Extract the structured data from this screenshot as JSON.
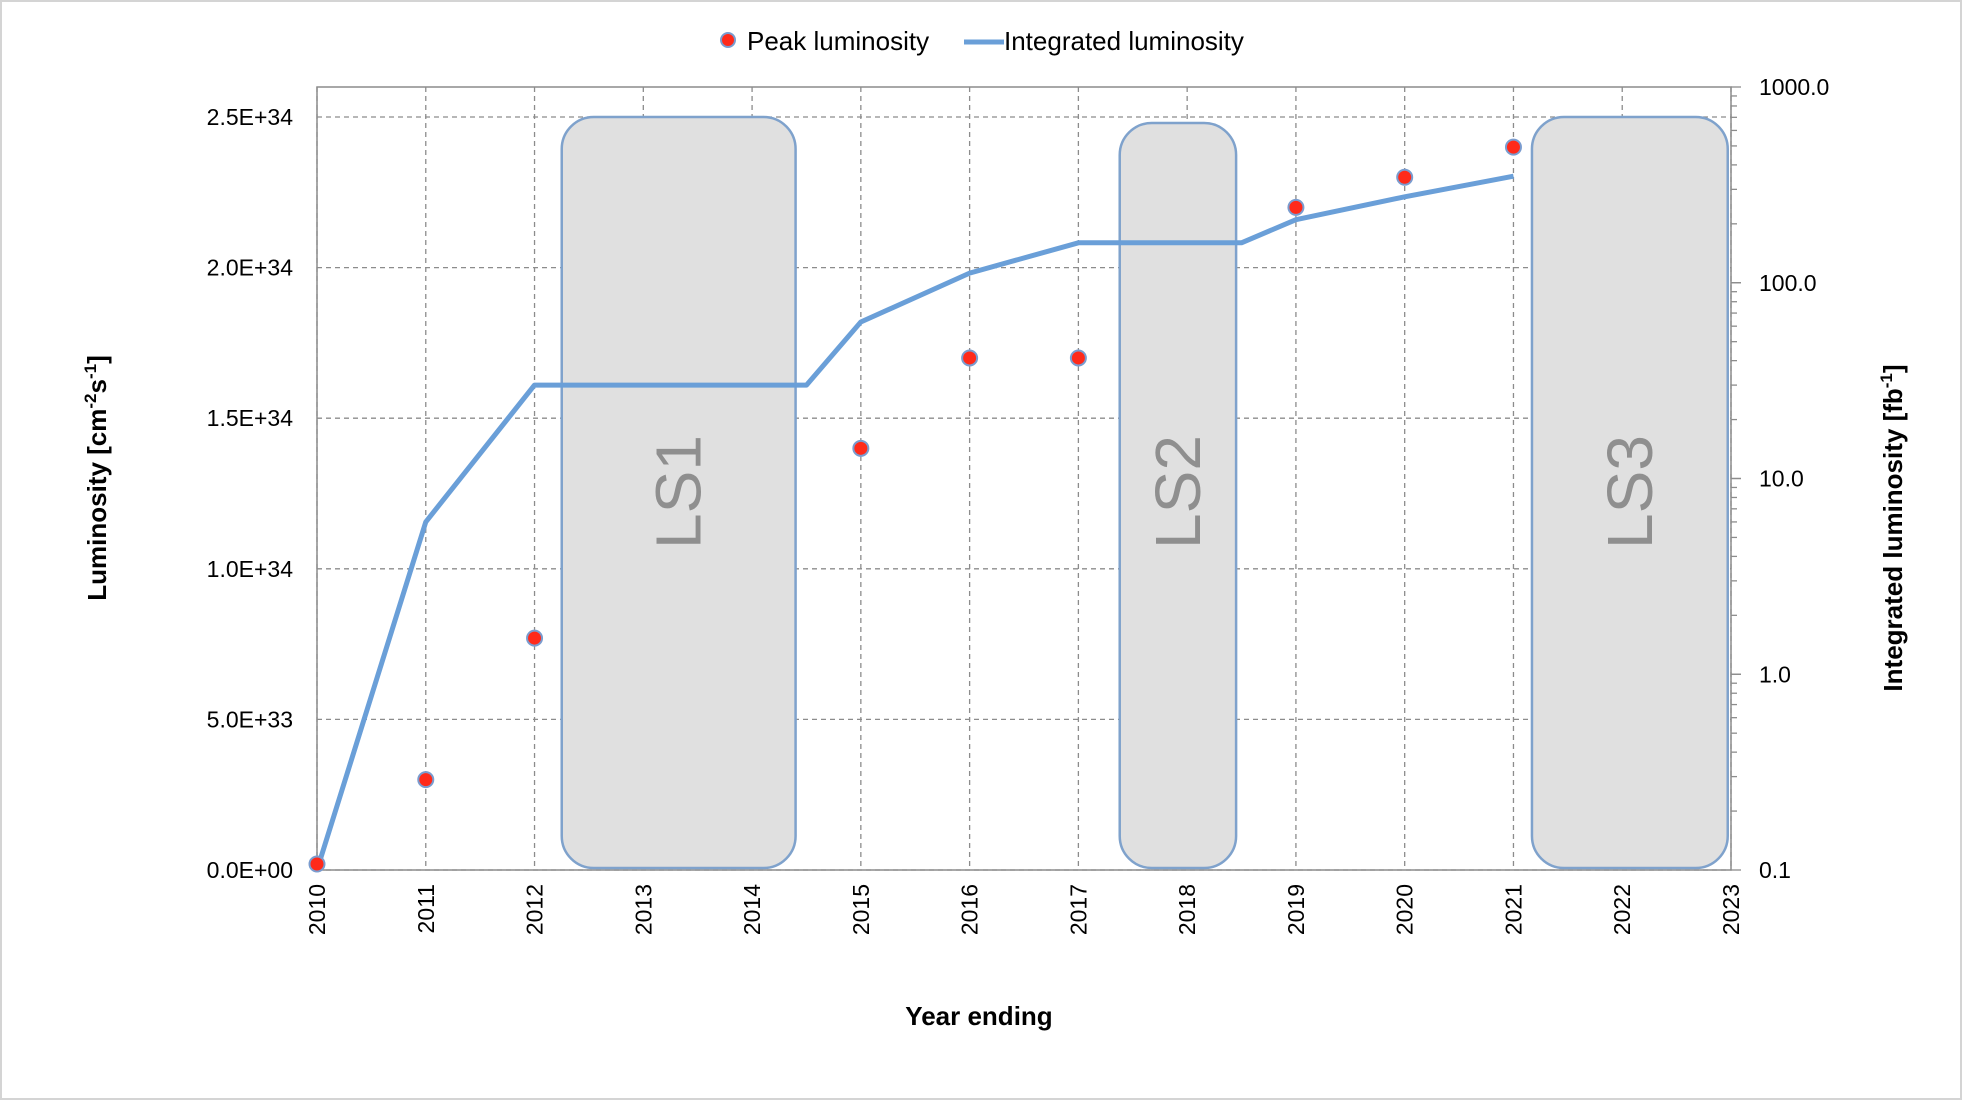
{
  "chart_data": {
    "type": "line",
    "title": "",
    "xlabel": "Year ending",
    "ylabel_left": "Luminosity [cm^-2 s^-1]",
    "ylabel_left_parts": {
      "base": "Luminosity [cm",
      "sup1": "-2",
      "mid": "s",
      "sup2": "-1",
      "end": "]"
    },
    "ylabel_right": "Integrated luminosity [fb^-1]",
    "ylabel_right_parts": {
      "base": "Integrated luminosity [fb",
      "sup": "-1",
      "end": "]"
    },
    "xlim": [
      2010,
      2023
    ],
    "x_ticks": [
      "2010",
      "2011",
      "2012",
      "2013",
      "2014",
      "2015",
      "2016",
      "2017",
      "2018",
      "2019",
      "2020",
      "2021",
      "2022",
      "2023"
    ],
    "ylim_left": [
      0,
      2.6e+34
    ],
    "y_left_ticks": [
      {
        "value": 0,
        "label": "0.0E+00"
      },
      {
        "value": 5e+33,
        "label": "5.0E+33"
      },
      {
        "value": 1e+34,
        "label": "1.0E+34"
      },
      {
        "value": 1.5e+34,
        "label": "1.5E+34"
      },
      {
        "value": 2e+34,
        "label": "2.0E+34"
      },
      {
        "value": 2.5e+34,
        "label": "2.5E+34"
      }
    ],
    "ylim_right": [
      0.1,
      1000
    ],
    "y_right_scale": "log",
    "y_right_ticks": [
      {
        "value": 0.1,
        "label": "0.1"
      },
      {
        "value": 1,
        "label": "1.0"
      },
      {
        "value": 10,
        "label": "10.0"
      },
      {
        "value": 100,
        "label": "100.0"
      },
      {
        "value": 1000,
        "label": "1000.0"
      }
    ],
    "grid": true,
    "legend_position": "top-center",
    "series": [
      {
        "name": "Peak luminosity",
        "type": "scatter",
        "axis": "left",
        "color": "#ff2a1a",
        "edge_color": "#7a9ccf",
        "points": [
          {
            "x": 2010,
            "y": 2e+32
          },
          {
            "x": 2011,
            "y": 3e+33
          },
          {
            "x": 2012,
            "y": 7.7e+33
          },
          {
            "x": 2015,
            "y": 1.4e+34
          },
          {
            "x": 2016,
            "y": 1.7e+34
          },
          {
            "x": 2017,
            "y": 1.7e+34
          },
          {
            "x": 2019,
            "y": 2.2e+34
          },
          {
            "x": 2020,
            "y": 2.3e+34
          },
          {
            "x": 2021,
            "y": 2.4e+34
          }
        ]
      },
      {
        "name": "Integrated luminosity",
        "type": "line",
        "axis": "right",
        "color": "#6a9fd8",
        "points": [
          {
            "x": 2010,
            "y": 0.1
          },
          {
            "x": 2011,
            "y": 6
          },
          {
            "x": 2012,
            "y": 30
          },
          {
            "x": 2014.5,
            "y": 30
          },
          {
            "x": 2015,
            "y": 63
          },
          {
            "x": 2016,
            "y": 112
          },
          {
            "x": 2017,
            "y": 160
          },
          {
            "x": 2018.5,
            "y": 160
          },
          {
            "x": 2019,
            "y": 210
          },
          {
            "x": 2020,
            "y": 275
          },
          {
            "x": 2021,
            "y": 350
          }
        ]
      }
    ],
    "shutdowns": [
      {
        "label": "LS1",
        "x_start": 2012.25,
        "x_end": 2014.4,
        "y_top": 2.5e+34
      },
      {
        "label": "LS2",
        "x_start": 2017.38,
        "x_end": 2018.45,
        "y_top": 2.48e+34
      },
      {
        "label": "LS3",
        "x_start": 2021.17,
        "x_end": 2022.97,
        "y_top": 2.5e+34
      }
    ],
    "shutdown_style": {
      "fill": "#e0e0e0",
      "stroke": "#7fa2cc"
    }
  }
}
